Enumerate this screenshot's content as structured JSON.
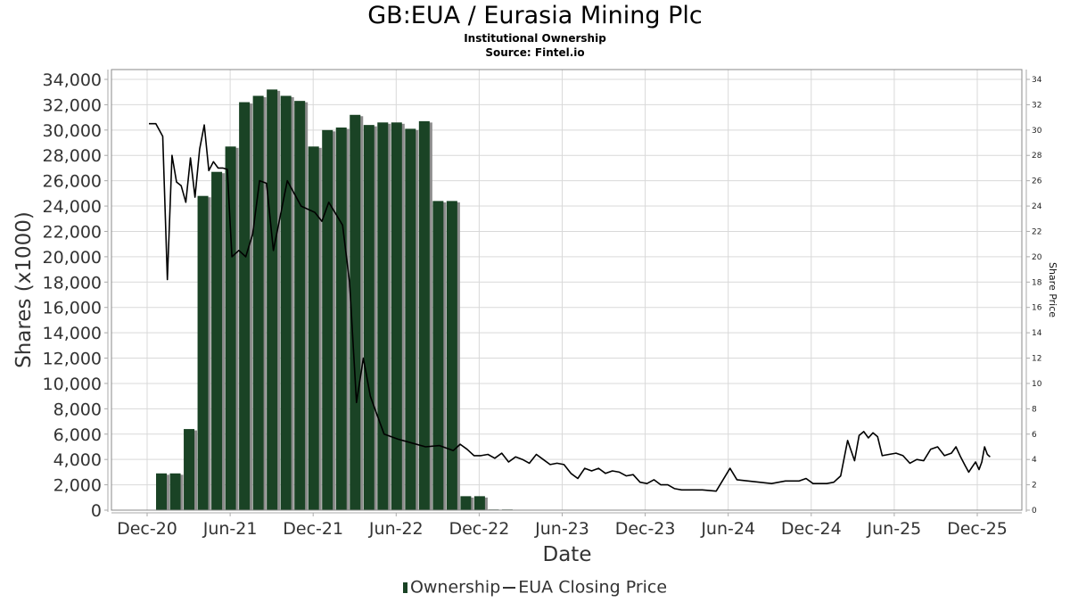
{
  "header": {
    "title": "GB:EUA / Eurasia Mining Plc",
    "subtitle": "Institutional Ownership",
    "source": "Source: Fintel.io"
  },
  "legend": {
    "ownership_label": "Ownership",
    "price_label": "EUA Closing Price"
  },
  "colors": {
    "bar": "#1a4325",
    "bar_shadow": "#8c8c8c",
    "line": "#000000",
    "grid": "#d9d9d9",
    "frame": "#888888"
  },
  "chart_data": {
    "type": "bar+line",
    "title": "GB:EUA / Eurasia Mining Plc",
    "subtitle": "Institutional Ownership",
    "xlabel": "Date",
    "ylabel": "Shares (x1000)",
    "y2label": "Share Price",
    "ylim": [
      0,
      34000
    ],
    "y2lim": [
      0,
      34
    ],
    "grid": true,
    "legend_position": "bottom",
    "x_ticks": [
      "Dec-20",
      "Jun-21",
      "Dec-21",
      "Jun-22",
      "Dec-22",
      "Jun-23",
      "Dec-23",
      "Jun-24",
      "Dec-24",
      "Jun-25",
      "Dec-25"
    ],
    "y_ticks": [
      "0",
      "2,000",
      "4,000",
      "6,000",
      "8,000",
      "10,000",
      "12,000",
      "14,000",
      "16,000",
      "18,000",
      "20,000",
      "22,000",
      "24,000",
      "26,000",
      "28,000",
      "30,000",
      "32,000",
      "34,000"
    ],
    "y2_ticks": [
      "0",
      "2",
      "4",
      "6",
      "8",
      "10",
      "12",
      "14",
      "16",
      "18",
      "20",
      "22",
      "24",
      "26",
      "28",
      "30",
      "32",
      "34"
    ],
    "series": [
      {
        "name": "Ownership",
        "type": "bar",
        "unit": "shares x1000",
        "dates": [
          "Jan-21",
          "Feb-21",
          "Mar-21",
          "Apr-21",
          "May-21",
          "Jun-21",
          "Jul-21",
          "Aug-21",
          "Sep-21",
          "Oct-21",
          "Nov-21",
          "Dec-21",
          "Jan-22",
          "Feb-22",
          "Mar-22",
          "Apr-22",
          "May-22",
          "Jun-22",
          "Jul-22",
          "Aug-22",
          "Sep-22",
          "Oct-22",
          "Nov-22",
          "Dec-22",
          "Jan-23",
          "Feb-23"
        ],
        "values": [
          2900,
          2900,
          6400,
          24800,
          26700,
          28700,
          32200,
          32700,
          33200,
          32700,
          32300,
          28700,
          30000,
          30200,
          31200,
          30400,
          30600,
          30600,
          30100,
          30700,
          24400,
          24400,
          1100,
          1100,
          50,
          50
        ]
      },
      {
        "name": "EUA Closing Price",
        "type": "line",
        "unit": "GBX",
        "points": [
          [
            "Dec-20",
            30.5
          ],
          [
            "Dec-20",
            30.5
          ],
          [
            "Jan-21",
            29.5
          ],
          [
            "Jan-21",
            18.2
          ],
          [
            "Jan-21",
            28.0
          ],
          [
            "Feb-21",
            25.9
          ],
          [
            "Feb-21",
            25.6
          ],
          [
            "Feb-21",
            24.3
          ],
          [
            "Mar-21",
            27.8
          ],
          [
            "Mar-21",
            24.7
          ],
          [
            "Mar-21",
            28.5
          ],
          [
            "Apr-21",
            30.4
          ],
          [
            "Apr-21",
            26.8
          ],
          [
            "Apr-21",
            27.5
          ],
          [
            "May-21",
            27.0
          ],
          [
            "May-21",
            27.0
          ],
          [
            "May-21",
            26.9
          ],
          [
            "Jun-21",
            20.0
          ],
          [
            "Jun-21",
            20.5
          ],
          [
            "Jul-21",
            20.0
          ],
          [
            "Jul-21",
            21.8
          ],
          [
            "Aug-21",
            26.0
          ],
          [
            "Aug-21",
            25.8
          ],
          [
            "Sep-21",
            20.5
          ],
          [
            "Oct-21",
            26.0
          ],
          [
            "Nov-21",
            24.0
          ],
          [
            "Dec-21",
            23.5
          ],
          [
            "Dec-21",
            22.8
          ],
          [
            "Jan-22",
            24.3
          ],
          [
            "Feb-22",
            22.5
          ],
          [
            "Feb-22",
            18.0
          ],
          [
            "Mar-22",
            8.5
          ],
          [
            "Mar-22",
            12.0
          ],
          [
            "Apr-22",
            9.0
          ],
          [
            "Apr-22",
            7.5
          ],
          [
            "May-22",
            6.0
          ],
          [
            "Jun-22",
            5.6
          ],
          [
            "Jul-22",
            5.3
          ],
          [
            "Aug-22",
            5.0
          ],
          [
            "Sep-22",
            5.1
          ],
          [
            "Oct-22",
            4.7
          ],
          [
            "Oct-22",
            5.2
          ],
          [
            "Nov-22",
            4.8
          ],
          [
            "Nov-22",
            4.3
          ],
          [
            "Dec-22",
            4.3
          ],
          [
            "Dec-22",
            4.4
          ],
          [
            "Jan-23",
            4.1
          ],
          [
            "Jan-23",
            4.5
          ],
          [
            "Feb-23",
            3.8
          ],
          [
            "Feb-23",
            4.2
          ],
          [
            "Mar-23",
            4.0
          ],
          [
            "Mar-23",
            3.7
          ],
          [
            "Apr-23",
            4.4
          ],
          [
            "Apr-23",
            4.0
          ],
          [
            "May-23",
            3.6
          ],
          [
            "May-23",
            3.7
          ],
          [
            "Jun-23",
            3.6
          ],
          [
            "Jun-23",
            2.9
          ],
          [
            "Jul-23",
            2.5
          ],
          [
            "Jul-23",
            3.3
          ],
          [
            "Aug-23",
            3.1
          ],
          [
            "Aug-23",
            3.3
          ],
          [
            "Sep-23",
            2.9
          ],
          [
            "Sep-23",
            3.1
          ],
          [
            "Oct-23",
            3.0
          ],
          [
            "Oct-23",
            2.7
          ],
          [
            "Nov-23",
            2.8
          ],
          [
            "Nov-23",
            2.2
          ],
          [
            "Dec-23",
            2.1
          ],
          [
            "Dec-23",
            2.4
          ],
          [
            "Jan-24",
            2.0
          ],
          [
            "Jan-24",
            2.0
          ],
          [
            "Feb-24",
            1.7
          ],
          [
            "Feb-24",
            1.6
          ],
          [
            "Mar-24",
            1.6
          ],
          [
            "Apr-24",
            1.6
          ],
          [
            "May-24",
            1.5
          ],
          [
            "Jun-24",
            3.3
          ],
          [
            "Jun-24",
            2.4
          ],
          [
            "Sep-24",
            2.1
          ],
          [
            "Oct-24",
            2.3
          ],
          [
            "Nov-24",
            2.3
          ],
          [
            "Nov-24",
            2.5
          ],
          [
            "Dec-24",
            2.1
          ],
          [
            "Dec-24",
            2.1
          ],
          [
            "Jan-25",
            2.1
          ],
          [
            "Jan-25",
            2.2
          ],
          [
            "Feb-25",
            2.7
          ],
          [
            "Feb-25",
            5.5
          ],
          [
            "Mar-25",
            3.9
          ],
          [
            "Mar-25",
            5.9
          ],
          [
            "Mar-25",
            6.2
          ],
          [
            "Apr-25",
            5.7
          ],
          [
            "Apr-25",
            6.1
          ],
          [
            "Apr-25",
            5.8
          ],
          [
            "May-25",
            4.3
          ],
          [
            "May-25",
            4.4
          ],
          [
            "Jun-25",
            4.5
          ],
          [
            "Jun-25",
            4.3
          ],
          [
            "Jul-25",
            3.7
          ],
          [
            "Jul-25",
            4.0
          ],
          [
            "Aug-25",
            3.9
          ],
          [
            "Aug-25",
            4.8
          ],
          [
            "Sep-25",
            5.0
          ],
          [
            "Sep-25",
            4.3
          ],
          [
            "Oct-25",
            4.5
          ],
          [
            "Oct-25",
            5.0
          ],
          [
            "Oct-25",
            4.2
          ],
          [
            "Nov-25",
            3.5
          ],
          [
            "Nov-25",
            3.0
          ],
          [
            "Nov-25",
            3.4
          ],
          [
            "Nov-25",
            3.8
          ],
          [
            "Dec-25",
            3.2
          ],
          [
            "Dec-25",
            3.8
          ],
          [
            "Dec-25",
            5.0
          ],
          [
            "Dec-25",
            4.4
          ],
          [
            "Dec-25",
            4.2
          ]
        ]
      }
    ]
  }
}
